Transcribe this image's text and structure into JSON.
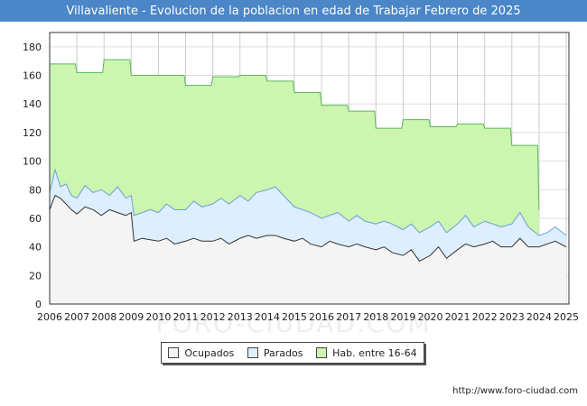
{
  "header": {
    "title": "Villavaliente - Evolucion de la poblacion en edad de Trabajar Febrero de 2025"
  },
  "footer": {
    "source_url": "http://www.foro-ciudad.com"
  },
  "watermark": "FORO-CIUDAD.COM",
  "chart_data": {
    "type": "area",
    "title": "Villavaliente - Evolucion de la poblacion en edad de Trabajar Febrero de 2025",
    "xlabel": "",
    "ylabel": "",
    "xlim": [
      2006,
      2025.1
    ],
    "ylim": [
      0,
      190
    ],
    "y_ticks": [
      0,
      20,
      40,
      60,
      80,
      100,
      120,
      140,
      160,
      180
    ],
    "x_ticks": [
      2006,
      2007,
      2008,
      2009,
      2010,
      2011,
      2012,
      2013,
      2014,
      2015,
      2016,
      2017,
      2018,
      2019,
      2020,
      2021,
      2022,
      2023,
      2024,
      2025
    ],
    "grid": true,
    "legend_position": "bottom",
    "colors": {
      "ocupados_fill": "#f4f4f4",
      "ocupados_line": "#333333",
      "parados_fill": "#ddeeff",
      "parados_line": "#6aa0d8",
      "hab_fill": "#ccf5b0",
      "hab_line": "#5cb85c"
    },
    "series": [
      {
        "name": "Hab. entre 16-64",
        "key": "hab",
        "points": [
          [
            2006.0,
            168
          ],
          [
            2006.95,
            168
          ],
          [
            2007.0,
            162
          ],
          [
            2007.95,
            162
          ],
          [
            2008.0,
            171
          ],
          [
            2008.95,
            171
          ],
          [
            2009.0,
            160
          ],
          [
            2009.95,
            160
          ],
          [
            2010.0,
            160
          ],
          [
            2010.95,
            160
          ],
          [
            2011.0,
            153
          ],
          [
            2011.95,
            153
          ],
          [
            2012.0,
            159
          ],
          [
            2012.95,
            159
          ],
          [
            2013.0,
            160
          ],
          [
            2013.95,
            160
          ],
          [
            2014.0,
            156
          ],
          [
            2014.95,
            156
          ],
          [
            2015.0,
            148
          ],
          [
            2015.95,
            148
          ],
          [
            2016.0,
            139
          ],
          [
            2016.95,
            139
          ],
          [
            2017.0,
            135
          ],
          [
            2017.95,
            135
          ],
          [
            2018.0,
            123
          ],
          [
            2018.95,
            123
          ],
          [
            2019.0,
            129
          ],
          [
            2019.95,
            129
          ],
          [
            2020.0,
            124
          ],
          [
            2020.95,
            124
          ],
          [
            2021.0,
            126
          ],
          [
            2021.95,
            126
          ],
          [
            2022.0,
            123
          ],
          [
            2022.95,
            123
          ],
          [
            2023.0,
            111
          ],
          [
            2023.95,
            111
          ],
          [
            2024.0,
            66
          ]
        ]
      },
      {
        "name": "Parados",
        "key": "parados",
        "points": [
          [
            2006.0,
            78
          ],
          [
            2006.2,
            94
          ],
          [
            2006.4,
            82
          ],
          [
            2006.6,
            84
          ],
          [
            2006.8,
            76
          ],
          [
            2007.0,
            74
          ],
          [
            2007.3,
            83
          ],
          [
            2007.6,
            78
          ],
          [
            2007.9,
            80
          ],
          [
            2008.2,
            76
          ],
          [
            2008.5,
            82
          ],
          [
            2008.8,
            74
          ],
          [
            2009.0,
            76
          ],
          [
            2009.1,
            62
          ],
          [
            2009.4,
            64
          ],
          [
            2009.7,
            66
          ],
          [
            2010.0,
            64
          ],
          [
            2010.3,
            70
          ],
          [
            2010.6,
            66
          ],
          [
            2011.0,
            66
          ],
          [
            2011.3,
            72
          ],
          [
            2011.6,
            68
          ],
          [
            2012.0,
            70
          ],
          [
            2012.3,
            74
          ],
          [
            2012.6,
            70
          ],
          [
            2013.0,
            76
          ],
          [
            2013.3,
            72
          ],
          [
            2013.6,
            78
          ],
          [
            2014.0,
            80
          ],
          [
            2014.3,
            82
          ],
          [
            2014.6,
            76
          ],
          [
            2015.0,
            68
          ],
          [
            2015.3,
            66
          ],
          [
            2015.6,
            64
          ],
          [
            2016.0,
            60
          ],
          [
            2016.3,
            62
          ],
          [
            2016.6,
            64
          ],
          [
            2017.0,
            58
          ],
          [
            2017.3,
            62
          ],
          [
            2017.6,
            58
          ],
          [
            2018.0,
            56
          ],
          [
            2018.3,
            58
          ],
          [
            2018.6,
            56
          ],
          [
            2019.0,
            52
          ],
          [
            2019.3,
            56
          ],
          [
            2019.6,
            50
          ],
          [
            2020.0,
            54
          ],
          [
            2020.3,
            58
          ],
          [
            2020.6,
            50
          ],
          [
            2021.0,
            56
          ],
          [
            2021.3,
            62
          ],
          [
            2021.6,
            54
          ],
          [
            2022.0,
            58
          ],
          [
            2022.3,
            56
          ],
          [
            2022.6,
            54
          ],
          [
            2023.0,
            56
          ],
          [
            2023.3,
            64
          ],
          [
            2023.6,
            54
          ],
          [
            2024.0,
            48
          ],
          [
            2024.3,
            50
          ],
          [
            2024.6,
            54
          ],
          [
            2025.0,
            48
          ]
        ]
      },
      {
        "name": "Ocupados",
        "key": "ocupados",
        "points": [
          [
            2006.0,
            66
          ],
          [
            2006.2,
            76
          ],
          [
            2006.4,
            74
          ],
          [
            2006.6,
            70
          ],
          [
            2006.8,
            66
          ],
          [
            2007.0,
            63
          ],
          [
            2007.3,
            68
          ],
          [
            2007.6,
            66
          ],
          [
            2007.9,
            62
          ],
          [
            2008.2,
            66
          ],
          [
            2008.5,
            64
          ],
          [
            2008.8,
            62
          ],
          [
            2009.0,
            64
          ],
          [
            2009.1,
            44
          ],
          [
            2009.4,
            46
          ],
          [
            2009.7,
            45
          ],
          [
            2010.0,
            44
          ],
          [
            2010.3,
            46
          ],
          [
            2010.6,
            42
          ],
          [
            2011.0,
            44
          ],
          [
            2011.3,
            46
          ],
          [
            2011.6,
            44
          ],
          [
            2012.0,
            44
          ],
          [
            2012.3,
            46
          ],
          [
            2012.6,
            42
          ],
          [
            2013.0,
            46
          ],
          [
            2013.3,
            48
          ],
          [
            2013.6,
            46
          ],
          [
            2014.0,
            48
          ],
          [
            2014.3,
            48
          ],
          [
            2014.6,
            46
          ],
          [
            2015.0,
            44
          ],
          [
            2015.3,
            46
          ],
          [
            2015.6,
            42
          ],
          [
            2016.0,
            40
          ],
          [
            2016.3,
            44
          ],
          [
            2016.6,
            42
          ],
          [
            2017.0,
            40
          ],
          [
            2017.3,
            42
          ],
          [
            2017.6,
            40
          ],
          [
            2018.0,
            38
          ],
          [
            2018.3,
            40
          ],
          [
            2018.6,
            36
          ],
          [
            2019.0,
            34
          ],
          [
            2019.3,
            38
          ],
          [
            2019.6,
            30
          ],
          [
            2020.0,
            34
          ],
          [
            2020.3,
            40
          ],
          [
            2020.6,
            32
          ],
          [
            2021.0,
            38
          ],
          [
            2021.3,
            42
          ],
          [
            2021.6,
            40
          ],
          [
            2022.0,
            42
          ],
          [
            2022.3,
            44
          ],
          [
            2022.6,
            40
          ],
          [
            2023.0,
            40
          ],
          [
            2023.3,
            46
          ],
          [
            2023.6,
            40
          ],
          [
            2024.0,
            40
          ],
          [
            2024.3,
            42
          ],
          [
            2024.6,
            44
          ],
          [
            2025.0,
            40
          ]
        ]
      }
    ],
    "legend": [
      {
        "label": "Ocupados",
        "key": "ocupados"
      },
      {
        "label": "Parados",
        "key": "parados"
      },
      {
        "label": "Hab. entre 16-64",
        "key": "hab"
      }
    ]
  }
}
